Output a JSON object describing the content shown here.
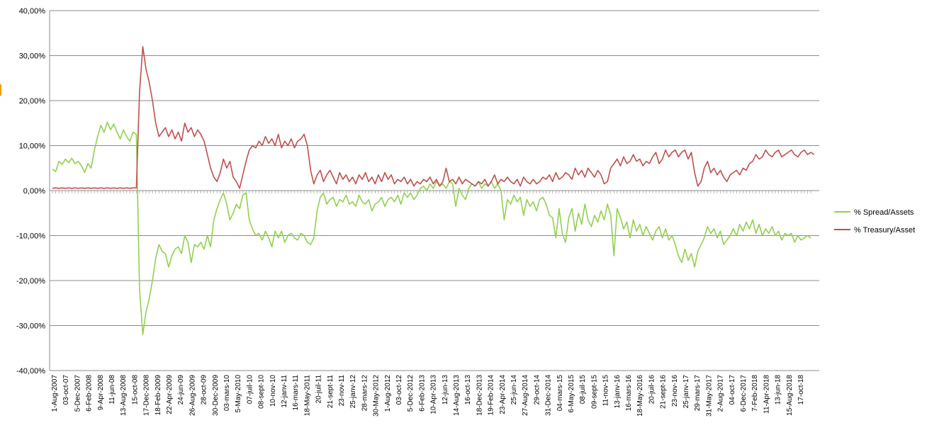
{
  "chart_data": {
    "type": "line",
    "title": "",
    "xlabel": "",
    "ylabel": "",
    "ylim": [
      -40,
      40
    ],
    "yticks": [
      40,
      30,
      20,
      10,
      0,
      -10,
      -20,
      -30,
      -40
    ],
    "ytick_labels": [
      "40,00%",
      "30,00%",
      "20,00%",
      "10,00%",
      "0,00%",
      "-10,00%",
      "-20,00%",
      "-30,00%",
      "-40,00%"
    ],
    "grid": true,
    "legend_position": "right",
    "x_labels": [
      "1-Aug-2007",
      "03-oct-07",
      "5-Dec-2007",
      "6-Feb-2008",
      "9-Apr-2008",
      "11-jun-08",
      "13-Aug-2008",
      "15-oct-08",
      "17-Dec-2008",
      "18-Feb-2009",
      "22-Apr-2009",
      "24-jun-09",
      "26-Aug-2009",
      "28-oct-09",
      "30-Dec-2009",
      "03-mars-10",
      "5-May-2010",
      "07-juil-10",
      "08-sept-10",
      "10-nov-10",
      "12-janv-11",
      "16-mars-11",
      "18-May-2011",
      "20-juil-11",
      "21-sept-11",
      "23-nov-11",
      "25-janv-12",
      "28-mars-12",
      "30-May-2012",
      "1-Aug-2012",
      "03-oct-12",
      "5-Dec-2012",
      "6-Feb-2013",
      "10-Apr-2013",
      "12-jun-13",
      "14-Aug-2013",
      "16-oct-13",
      "18-Dec-2013",
      "19-Feb-2014",
      "23-Apr-2014",
      "25-jun-14",
      "27-Aug-2014",
      "29-oct-14",
      "31-Dec-2014",
      "04-mars-15",
      "6-May-2015",
      "08-juil-15",
      "09-sept-15",
      "11-nov-15",
      "13-janv-16",
      "16-mars-16",
      "18-May-2016",
      "20-juil-16",
      "21-sept-16",
      "23-nov-16",
      "25-janv-17",
      "29-mars-17",
      "31-May-2017",
      "2-Aug-2017",
      "04-oct-17",
      "6-Dec-2017",
      "7-Feb-2018",
      "11-Apr-2018",
      "13-jun-18",
      "15-Aug-2018",
      "17-oct-18"
    ],
    "series": [
      {
        "name": "% Spread/Assets",
        "color": "#92d050",
        "values": [
          4.8,
          4.2,
          6.5,
          5.8,
          7.0,
          6.2,
          7.2,
          6.0,
          6.5,
          5.5,
          4.0,
          6.0,
          5.0,
          9.0,
          12.0,
          14.5,
          13.0,
          15.2,
          13.5,
          14.8,
          13.0,
          11.5,
          13.5,
          12.0,
          11.0,
          13.0,
          12.5,
          -22.0,
          -32.0,
          -27.0,
          -24.0,
          -20.0,
          -15.0,
          -12.0,
          -13.5,
          -14.0,
          -17.0,
          -14.5,
          -13.0,
          -12.5,
          -14.0,
          -10.0,
          -11.5,
          -16.0,
          -12.0,
          -12.5,
          -11.5,
          -13.0,
          -10.0,
          -12.5,
          -6.5,
          -4.0,
          -2.0,
          -0.5,
          -3.0,
          -6.5,
          -5.0,
          -3.0,
          -4.0,
          -1.0,
          -0.5,
          -6.5,
          -8.5,
          -10.0,
          -9.5,
          -11.0,
          -9.0,
          -10.5,
          -12.5,
          -9.0,
          -10.5,
          -9.0,
          -11.5,
          -10.0,
          -9.5,
          -10.5,
          -11.0,
          -9.5,
          -10.0,
          -11.5,
          -12.0,
          -10.5,
          -4.5,
          -1.5,
          -0.5,
          -3.0,
          -2.0,
          -1.5,
          -3.5,
          -2.0,
          -2.5,
          -1.0,
          -3.0,
          -2.5,
          -3.5,
          -1.0,
          -2.5,
          -3.0,
          -2.0,
          -4.5,
          -3.0,
          -2.5,
          -1.5,
          -3.5,
          -2.0,
          -1.5,
          -2.5,
          -1.0,
          -3.0,
          -0.5,
          -1.5,
          -0.5,
          -2.0,
          -1.0,
          0.5,
          1.0,
          0.0,
          1.5,
          0.5,
          2.0,
          1.0,
          1.5,
          0.5,
          2.0,
          1.5,
          -3.5,
          0.5,
          -1.0,
          -2.0,
          0.5,
          1.5,
          1.0,
          2.0,
          0.5,
          1.5,
          1.0,
          2.0,
          0.5,
          1.5,
          0.0,
          -6.5,
          -2.0,
          -3.0,
          -1.0,
          -2.5,
          -1.5,
          -5.5,
          -2.0,
          -3.5,
          -2.5,
          -4.5,
          -2.0,
          -1.5,
          -3.0,
          -5.5,
          -6.0,
          -10.5,
          -4.0,
          -9.5,
          -11.5,
          -6.0,
          -4.0,
          -9.0,
          -5.0,
          -7.5,
          -3.0,
          -6.5,
          -8.0,
          -5.5,
          -7.0,
          -4.5,
          -6.5,
          -3.0,
          -5.5,
          -14.5,
          -4.0,
          -6.0,
          -8.5,
          -7.0,
          -10.5,
          -6.5,
          -9.0,
          -7.5,
          -10.0,
          -8.0,
          -9.5,
          -11.0,
          -9.0,
          -8.0,
          -10.5,
          -8.5,
          -11.0,
          -10.0,
          -12.0,
          -14.5,
          -16.0,
          -13.0,
          -15.5,
          -14.0,
          -17.0,
          -13.5,
          -12.0,
          -10.5,
          -8.0,
          -9.5,
          -8.5,
          -10.5,
          -9.0,
          -12.0,
          -11.0,
          -10.0,
          -8.5,
          -10.0,
          -7.5,
          -9.0,
          -7.0,
          -8.5,
          -6.5,
          -9.5,
          -7.5,
          -10.0,
          -8.5,
          -9.5,
          -8.0,
          -10.0,
          -9.0,
          -11.0,
          -9.5,
          -10.0,
          -9.5,
          -11.5,
          -10.0,
          -11.0,
          -10.5,
          -10.0,
          -10.5
        ]
      },
      {
        "name": "% Treasury/Asset",
        "color": "#c0504d",
        "values": [
          0.5,
          0.6,
          0.5,
          0.6,
          0.5,
          0.6,
          0.5,
          0.6,
          0.5,
          0.6,
          0.5,
          0.6,
          0.5,
          0.6,
          0.5,
          0.6,
          0.5,
          0.6,
          0.5,
          0.6,
          0.5,
          0.6,
          0.5,
          0.6,
          0.5,
          0.6,
          0.6,
          22.0,
          32.0,
          27.0,
          24.0,
          20.0,
          15.0,
          12.0,
          13.0,
          14.0,
          12.0,
          13.5,
          11.5,
          13.0,
          11.0,
          15.0,
          13.0,
          14.0,
          12.0,
          13.5,
          12.5,
          11.0,
          8.0,
          5.0,
          3.0,
          2.0,
          4.0,
          7.0,
          5.0,
          6.5,
          3.0,
          2.0,
          0.5,
          3.5,
          6.5,
          9.0,
          10.0,
          9.5,
          11.0,
          10.0,
          12.0,
          10.5,
          11.5,
          10.0,
          12.5,
          9.5,
          11.0,
          10.0,
          11.5,
          9.5,
          11.0,
          11.5,
          12.5,
          10.0,
          4.5,
          1.5,
          3.5,
          4.5,
          2.0,
          3.5,
          4.5,
          3.0,
          1.5,
          4.0,
          2.5,
          3.5,
          2.0,
          3.0,
          1.5,
          3.5,
          2.5,
          4.0,
          2.0,
          3.0,
          1.5,
          3.5,
          2.0,
          4.0,
          2.5,
          3.5,
          1.5,
          2.5,
          2.0,
          3.0,
          1.5,
          2.5,
          1.0,
          2.0,
          1.5,
          2.5,
          2.0,
          3.0,
          1.5,
          2.5,
          1.0,
          2.0,
          5.0,
          2.0,
          2.5,
          1.5,
          3.0,
          1.5,
          2.5,
          2.0,
          1.5,
          1.0,
          2.0,
          1.5,
          2.5,
          1.0,
          2.0,
          3.5,
          1.5,
          2.5,
          2.0,
          3.0,
          2.0,
          1.5,
          2.5,
          1.0,
          3.0,
          2.0,
          1.5,
          2.5,
          1.5,
          2.0,
          3.0,
          2.5,
          3.5,
          2.0,
          4.0,
          2.5,
          3.0,
          4.0,
          3.5,
          2.5,
          5.0,
          3.5,
          4.5,
          3.0,
          5.0,
          4.0,
          3.0,
          4.5,
          3.5,
          1.5,
          2.0,
          5.0,
          6.0,
          7.0,
          5.5,
          7.5,
          6.0,
          6.5,
          8.0,
          6.5,
          7.0,
          5.5,
          6.5,
          6.0,
          7.5,
          8.5,
          6.0,
          7.0,
          9.0,
          7.5,
          8.5,
          9.0,
          7.5,
          8.5,
          9.0,
          7.0,
          8.5,
          4.0,
          1.0,
          2.0,
          5.0,
          6.5,
          4.0,
          5.0,
          3.5,
          4.5,
          3.0,
          2.0,
          3.5,
          4.0,
          4.5,
          3.5,
          5.0,
          4.5,
          6.0,
          6.5,
          8.0,
          7.0,
          7.5,
          9.0,
          8.0,
          7.5,
          8.5,
          9.0,
          7.5,
          8.0,
          8.5,
          9.0,
          8.0,
          7.5,
          8.5,
          9.0,
          8.0,
          8.5,
          8.0
        ]
      }
    ]
  }
}
